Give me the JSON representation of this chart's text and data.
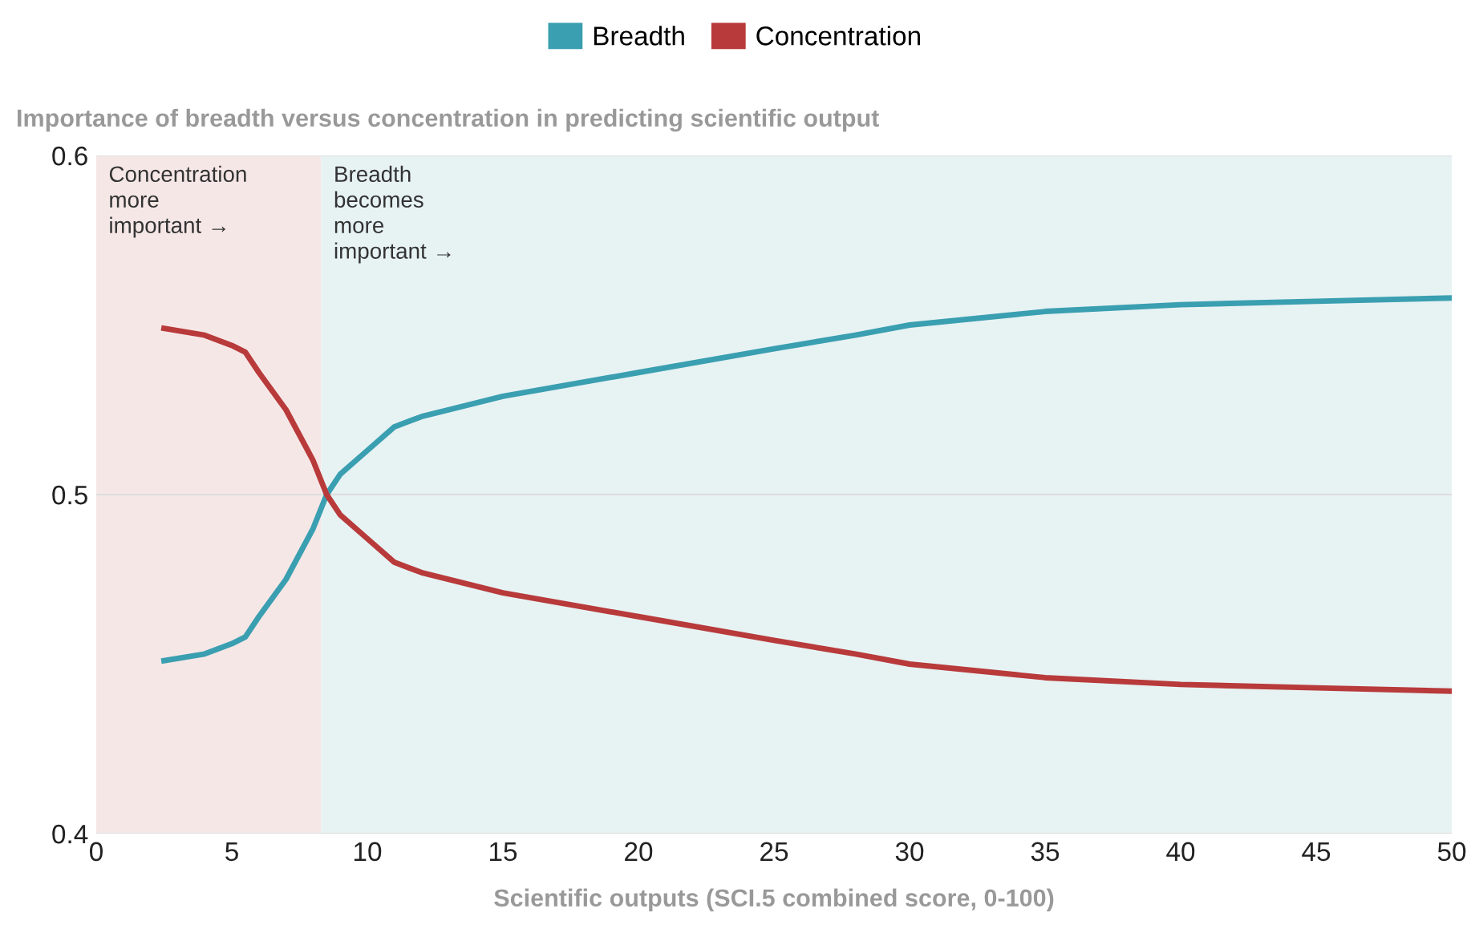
{
  "chart_data": {
    "type": "line",
    "ylabel": "Importance of breadth versus concentration in predicting scientific output",
    "xlabel": "Scientific outputs (SCI.5 combined score, 0-100)",
    "x": [
      2.5,
      4,
      5,
      5.5,
      6,
      7,
      8,
      8.5,
      9,
      10,
      11,
      12,
      15,
      20,
      25,
      28,
      30,
      35,
      40,
      45,
      50
    ],
    "series": [
      {
        "name": "Breadth",
        "color": "#3a9fb0",
        "values": [
          0.451,
          0.453,
          0.456,
          0.458,
          0.464,
          0.475,
          0.49,
          0.5,
          0.506,
          0.513,
          0.52,
          0.523,
          0.529,
          0.536,
          0.543,
          0.547,
          0.55,
          0.554,
          0.556,
          0.557,
          0.558
        ]
      },
      {
        "name": "Concentration",
        "color": "#b83a3a",
        "values": [
          0.549,
          0.547,
          0.544,
          0.542,
          0.536,
          0.525,
          0.51,
          0.5,
          0.494,
          0.487,
          0.48,
          0.477,
          0.471,
          0.464,
          0.457,
          0.453,
          0.45,
          0.446,
          0.444,
          0.443,
          0.442
        ]
      }
    ],
    "xlim": [
      0,
      50
    ],
    "ylim": [
      0.4,
      0.6
    ],
    "xticks": [
      0,
      5,
      10,
      15,
      20,
      25,
      30,
      35,
      40,
      45,
      50
    ],
    "yticks": [
      0.4,
      0.5,
      0.6
    ],
    "bands": [
      {
        "axis": "x",
        "from": 0,
        "to": 8.3,
        "label": "Concentration\nmore\nimportant →",
        "color": "#f6e7e7"
      },
      {
        "axis": "x",
        "from": 8.3,
        "to": 50,
        "label": "Breadth\nbecomes\nmore\nimportant →",
        "color": "#e7f2f3"
      }
    ],
    "grid": "y",
    "legend": "top",
    "marker": "none",
    "line_style": "solid"
  }
}
